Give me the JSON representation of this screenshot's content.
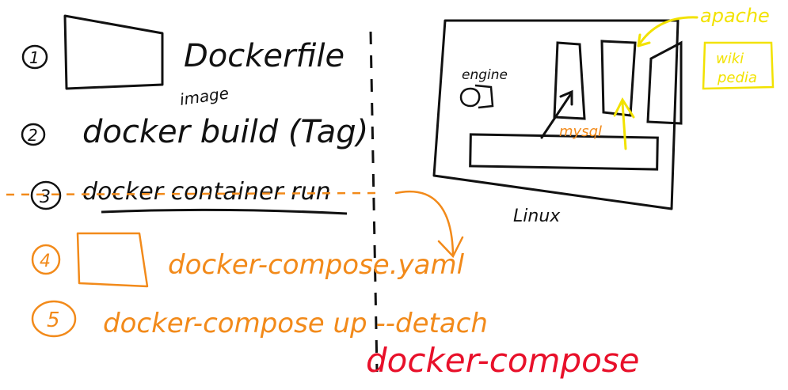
{
  "steps": [
    {
      "num": "1",
      "text": "Dockerfile",
      "color": "#111111"
    },
    {
      "num": "2",
      "text": "docker build (Tag)",
      "color": "#111111"
    },
    {
      "num": "3",
      "text": "docker container run",
      "color": "#111111"
    },
    {
      "num": "4",
      "text": "docker-compose.yaml",
      "color": "#f28a1a"
    },
    {
      "num": "5",
      "text": "docker-compose up --detach",
      "color": "#f28a1a"
    }
  ],
  "annotation_image": "image",
  "footer_label": "docker-compose",
  "diagram": {
    "host_label": "Linux",
    "engine_label": "engine",
    "mysql_label": "mysql",
    "apache_label": "apache",
    "wiki_label": "wiki",
    "wiki_label_2": "pedia"
  },
  "colors": {
    "ink": "#111111",
    "orange": "#f28a1a",
    "yellow": "#f2e200",
    "red": "#e8102a"
  }
}
